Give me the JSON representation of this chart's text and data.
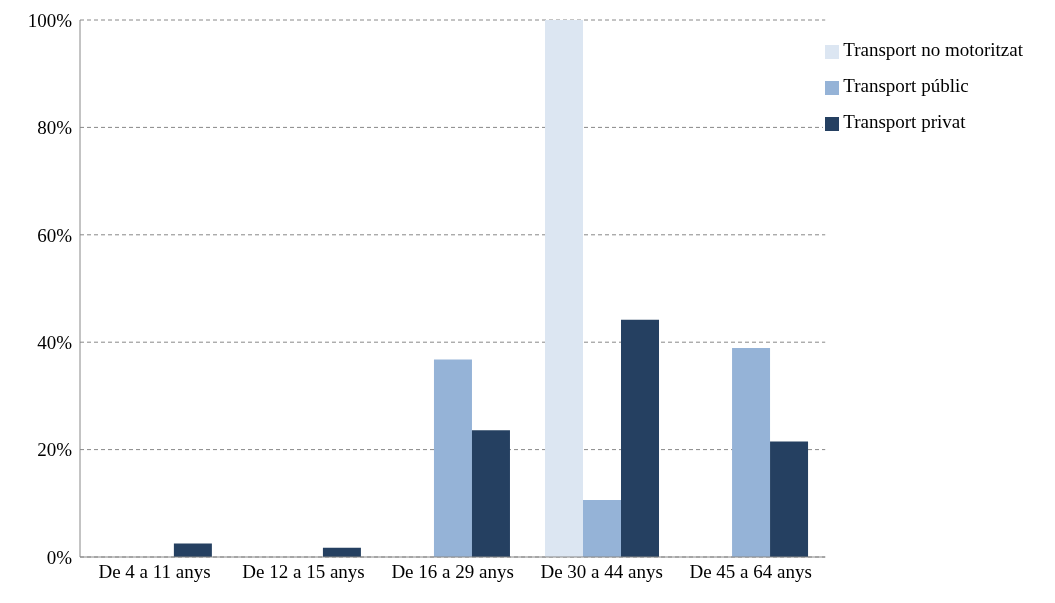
{
  "chart_data": {
    "type": "bar",
    "categories": [
      "De 4 a 11 anys",
      "De 12 a 15 anys",
      "De 16 a 29 anys",
      "De 30 a 44 anys",
      "De 45 a 64 anys"
    ],
    "series": [
      {
        "name": "Transport no motoritzat",
        "color": "#dce6f2",
        "values": [
          0,
          0,
          0,
          100,
          0
        ]
      },
      {
        "name": "Transport públic",
        "color": "#95b3d7",
        "values": [
          0,
          0,
          36.8,
          10.6,
          38.9
        ]
      },
      {
        "name": "Transport privat",
        "color": "#254061",
        "values": [
          2.5,
          1.7,
          23.6,
          44.2,
          21.5
        ]
      }
    ],
    "ylim": [
      0,
      100
    ],
    "yticks": [
      {
        "value": 0,
        "label": "0%"
      },
      {
        "value": 20,
        "label": "20%"
      },
      {
        "value": 40,
        "label": "40%"
      },
      {
        "value": 60,
        "label": "60%"
      },
      {
        "value": 80,
        "label": "80%"
      },
      {
        "value": 100,
        "label": "100%"
      }
    ],
    "grid": "y",
    "legend": "top right"
  }
}
